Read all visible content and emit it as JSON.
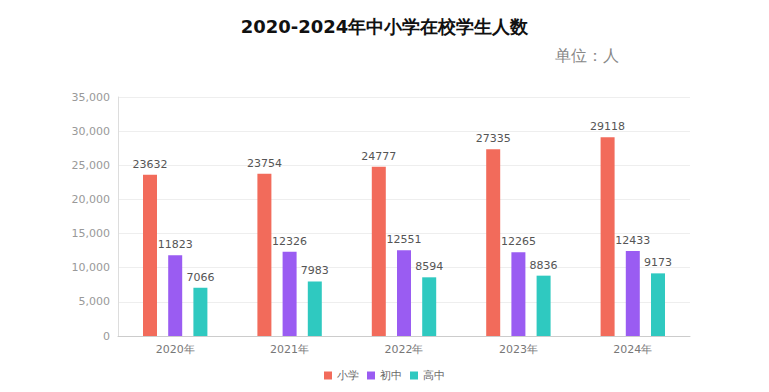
{
  "chart_data": {
    "type": "bar",
    "title": "2020-2024年中小学在校学生人数",
    "subtitle": "单位：人",
    "categories": [
      "2020年",
      "2021年",
      "2022年",
      "2023年",
      "2024年"
    ],
    "series": [
      {
        "name": "小学",
        "color": "#f26b5b",
        "values": [
          23632,
          23754,
          24777,
          27335,
          29118
        ]
      },
      {
        "name": "初中",
        "color": "#9a5cf2",
        "values": [
          11823,
          12326,
          12551,
          12265,
          12433
        ]
      },
      {
        "name": "高中",
        "color": "#2fc9c0",
        "values": [
          7066,
          7983,
          8594,
          8836,
          9173
        ]
      }
    ],
    "ylim": [
      0,
      35000
    ],
    "yticks": [
      0,
      5000,
      10000,
      15000,
      20000,
      25000,
      30000,
      35000
    ],
    "grid": true,
    "legend": "bottom",
    "data_labels": true,
    "annotations": [
      "1"
    ]
  }
}
